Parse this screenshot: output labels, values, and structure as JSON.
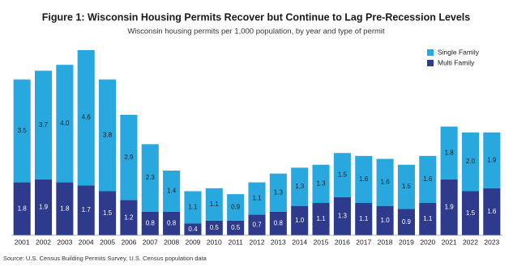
{
  "chart_data": {
    "type": "stacked_bar",
    "title": "Figure 1: Wisconsin Housing Permits Recover but Continue to Lag Pre-Recession Levels",
    "subtitle": "Wisconsin housing permits per 1,000 population, by year and type of permit",
    "source": "Source: U.S. Census Building Permits Survey, U.S. Census population data",
    "categories": [
      "2001",
      "2002",
      "2003",
      "2004",
      "2005",
      "2006",
      "2007",
      "2008",
      "2009",
      "2010",
      "2011",
      "2012",
      "2013",
      "2014",
      "2015",
      "2016",
      "2017",
      "2018",
      "2019",
      "2020",
      "2021",
      "2022",
      "2023"
    ],
    "series": [
      {
        "name": "Multi Family",
        "color": "#2e3a8c",
        "values": [
          1.8,
          1.9,
          1.8,
          1.7,
          1.5,
          1.2,
          0.8,
          0.8,
          0.4,
          0.5,
          0.5,
          0.7,
          0.8,
          1.0,
          1.1,
          1.3,
          1.1,
          1.0,
          0.9,
          1.1,
          1.9,
          1.5,
          1.6
        ],
        "value_labels": [
          "1.8",
          "1.9",
          "1.8",
          "1.7",
          "1.5",
          "1.2",
          "0.8",
          "0.8",
          "0.4",
          "0.5",
          "0.5",
          "0.7",
          "0.8",
          "1.0",
          "1.1",
          "1.3",
          "1.1",
          "1.0",
          "0.9",
          "1.1",
          "1.9",
          "1.5",
          "1.6"
        ]
      },
      {
        "name": "Single Family",
        "color": "#29a8e0",
        "values": [
          3.5,
          3.7,
          4.0,
          4.6,
          3.8,
          2.9,
          2.3,
          1.4,
          1.1,
          1.1,
          0.9,
          1.1,
          1.3,
          1.3,
          1.3,
          1.5,
          1.6,
          1.6,
          1.5,
          1.6,
          1.8,
          2.0,
          1.9
        ],
        "value_labels": [
          "3.5",
          "3.7",
          "4.0",
          "4.6",
          "3.8",
          "2.9",
          "2.3",
          "1.4",
          "1.1",
          "1.1",
          "0.9",
          "1.1",
          "1.3",
          "1.3",
          "1.3",
          "1.5",
          "1.6",
          "1.6",
          "1.5",
          "1.6",
          "1.8",
          "2.0",
          "1.9"
        ]
      }
    ]
  }
}
